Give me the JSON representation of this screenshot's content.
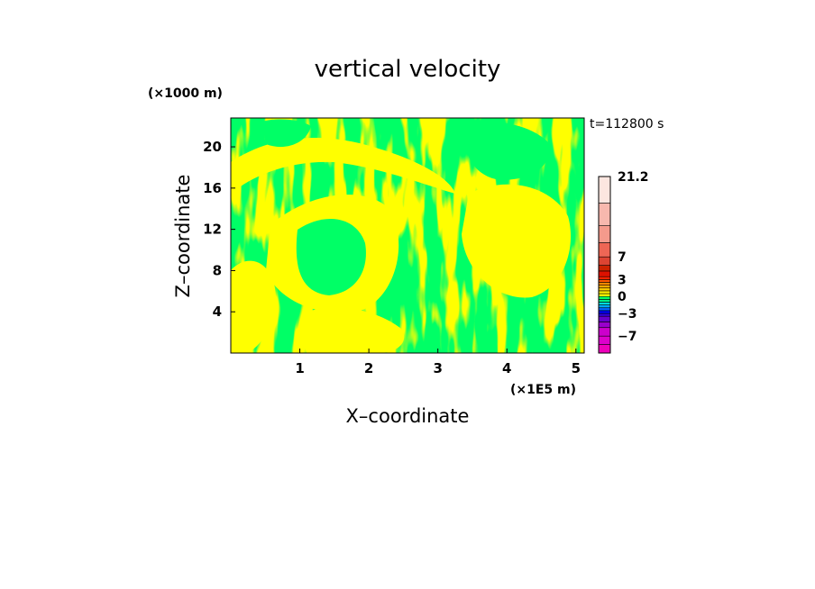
{
  "chart_data": {
    "type": "heatmap",
    "title": "vertical velocity",
    "xlabel": "X–coordinate",
    "ylabel": "Z–coordinate",
    "x_unit": "(×1E5 m)",
    "y_unit": "(×1000 m)",
    "time_label": "t=112800 s",
    "xlim": [
      0,
      5.12
    ],
    "ylim": [
      0,
      22.8
    ],
    "x_ticks": [
      {
        "value": 1,
        "label": "1"
      },
      {
        "value": 2,
        "label": "2"
      },
      {
        "value": 3,
        "label": "3"
      },
      {
        "value": 4,
        "label": "4"
      },
      {
        "value": 5,
        "label": "5"
      }
    ],
    "y_ticks": [
      {
        "value": 4,
        "label": "4"
      },
      {
        "value": 8,
        "label": "8"
      },
      {
        "value": 12,
        "label": "12"
      },
      {
        "value": 16,
        "label": "16"
      },
      {
        "value": 20,
        "label": "20"
      }
    ],
    "field_colors": {
      "positive": "#ffff00",
      "negative": "#00ff66"
    },
    "colorbar": {
      "min": -10,
      "max": 21.2,
      "levels": [
        -10,
        -8.5,
        -7,
        -5.5,
        -4.5,
        -3.5,
        -3,
        -2.5,
        -2,
        -1.5,
        -1,
        -0.5,
        0,
        0.5,
        1,
        1.5,
        2,
        2.5,
        3,
        3.5,
        4.5,
        5.5,
        7,
        9.5,
        12.5,
        16.5,
        21.2
      ],
      "colors": [
        "#ee00bb",
        "#dd00cc",
        "#cc00cc",
        "#9900cc",
        "#6600cc",
        "#3300dd",
        "#0000ff",
        "#0066ff",
        "#00aaff",
        "#00dddd",
        "#00ee88",
        "#00ff66",
        "#ffff00",
        "#ffee00",
        "#ffcc00",
        "#ffaa00",
        "#ff8800",
        "#ff5500",
        "#ff2200",
        "#dd1100",
        "#cc2200",
        "#dd4433",
        "#ee6655",
        "#f49a8c",
        "#f7b8ae",
        "#fce6e0"
      ],
      "labels": [
        {
          "value": 21.2,
          "label": "21.2"
        },
        {
          "value": 7,
          "label": "7"
        },
        {
          "value": 3,
          "label": "3"
        },
        {
          "value": 0,
          "label": "0"
        },
        {
          "value": -3,
          "label": "−3"
        },
        {
          "value": -7,
          "label": "−7"
        }
      ]
    }
  }
}
